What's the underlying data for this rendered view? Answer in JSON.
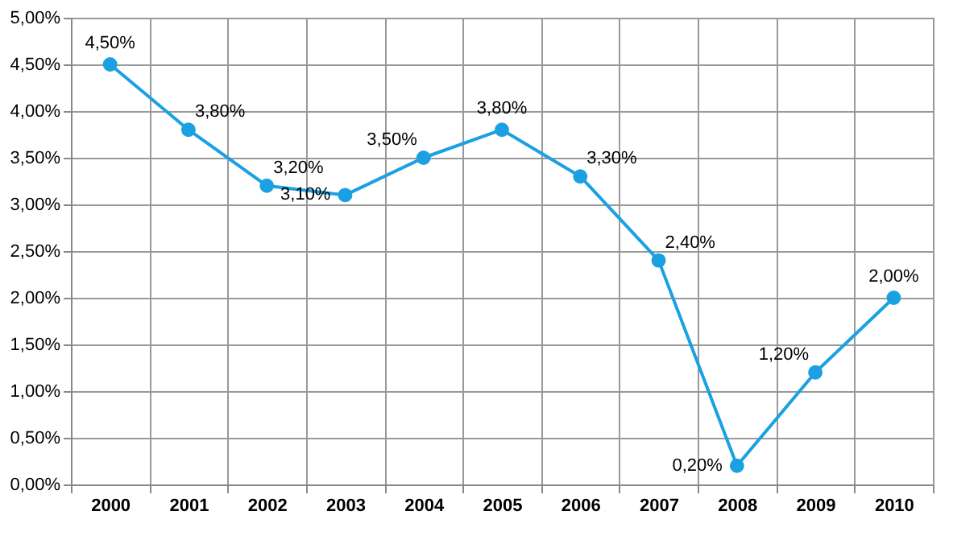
{
  "chart_data": {
    "type": "line",
    "categories": [
      "2000",
      "2001",
      "2002",
      "2003",
      "2004",
      "2005",
      "2006",
      "2007",
      "2008",
      "2009",
      "2010"
    ],
    "series": [
      {
        "color": "#1ba1e2",
        "values": [
          4.5,
          3.8,
          3.2,
          3.1,
          3.5,
          3.8,
          3.3,
          2.4,
          0.2,
          1.2,
          2.0
        ],
        "value_labels": [
          "4,50%",
          "3,80%",
          "3,20%",
          "3,10%",
          "3,50%",
          "3,80%",
          "3,30%",
          "2,40%",
          "0,20%",
          "1,20%",
          "2,00%"
        ]
      }
    ],
    "ylim": [
      0,
      5
    ],
    "yticks": [
      {
        "value": 0,
        "label": "0,00%"
      },
      {
        "value": 0.5,
        "label": "0,50%"
      },
      {
        "value": 1,
        "label": "1,00%"
      },
      {
        "value": 1.5,
        "label": "1,50%"
      },
      {
        "value": 2,
        "label": "2,00%"
      },
      {
        "value": 2.5,
        "label": "2,50%"
      },
      {
        "value": 3,
        "label": "3,00%"
      },
      {
        "value": 3.5,
        "label": "3,50%"
      },
      {
        "value": 4,
        "label": "4,00%"
      },
      {
        "value": 4.5,
        "label": "4,50%"
      },
      {
        "value": 5,
        "label": "5,00%"
      }
    ],
    "grid": true,
    "marker": "circle",
    "line_style": "solid"
  }
}
